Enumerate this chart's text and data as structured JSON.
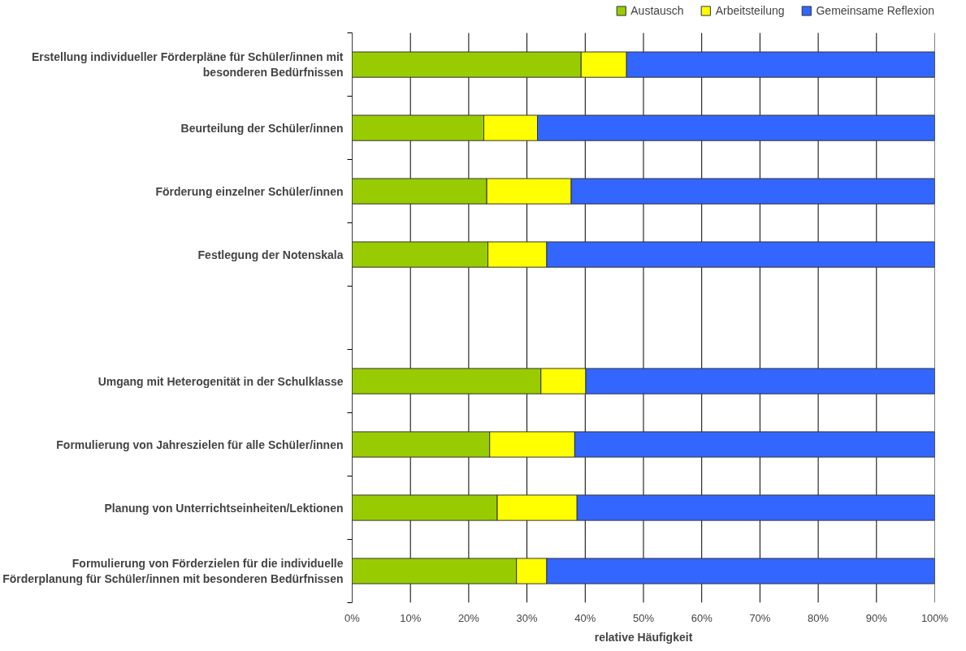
{
  "chart_data": {
    "type": "bar",
    "orientation": "horizontal",
    "stacked": true,
    "xlabel": "relative Häufigkeit",
    "categories": [
      "Erstellung individueller Förderpläne für Schüler/innen mit\nbesonderen Bedürfnissen",
      "Beurteilung der Schüler/innen",
      "Förderung einzelner Schüler/innen",
      "Festlegung der Notenskala",
      null,
      "Umgang mit Heterogenität in der Schulklasse",
      "Formulierung von Jahreszielen für alle Schüler/innen",
      "Planung von Unterrichtseinheiten/Lektionen",
      "Formulierung von Förderzielen für die individuelle\nFörderplanung für Schüler/innen mit besonderen Bedürfnissen"
    ],
    "series": [
      {
        "name": "Austausch",
        "color": "#99cc00",
        "values": [
          39.3,
          22.6,
          23.1,
          23.3,
          null,
          32.4,
          23.6,
          24.9,
          28.2
        ]
      },
      {
        "name": "Arbeitsteilung",
        "color": "#ffff00",
        "values": [
          7.8,
          9.2,
          14.5,
          10.1,
          null,
          7.7,
          14.6,
          13.7,
          5.2
        ]
      },
      {
        "name": "Gemeinsame Reflexion",
        "color": "#3366ff",
        "values": [
          52.9,
          68.2,
          62.4,
          66.6,
          null,
          59.9,
          61.8,
          61.4,
          66.6
        ]
      }
    ],
    "xlim": [
      0,
      100
    ],
    "xticks": [
      {
        "value": 0,
        "label": "0%"
      },
      {
        "value": 10,
        "label": "10%"
      },
      {
        "value": 20,
        "label": "20%"
      },
      {
        "value": 30,
        "label": "30%"
      },
      {
        "value": 40,
        "label": "40%"
      },
      {
        "value": 50,
        "label": "50%"
      },
      {
        "value": 60,
        "label": "60%"
      },
      {
        "value": 70,
        "label": "70%"
      },
      {
        "value": 80,
        "label": "80%"
      },
      {
        "value": 90,
        "label": "90%"
      },
      {
        "value": 100,
        "label": "100%"
      }
    ],
    "grid": "x",
    "legend": "top right"
  }
}
